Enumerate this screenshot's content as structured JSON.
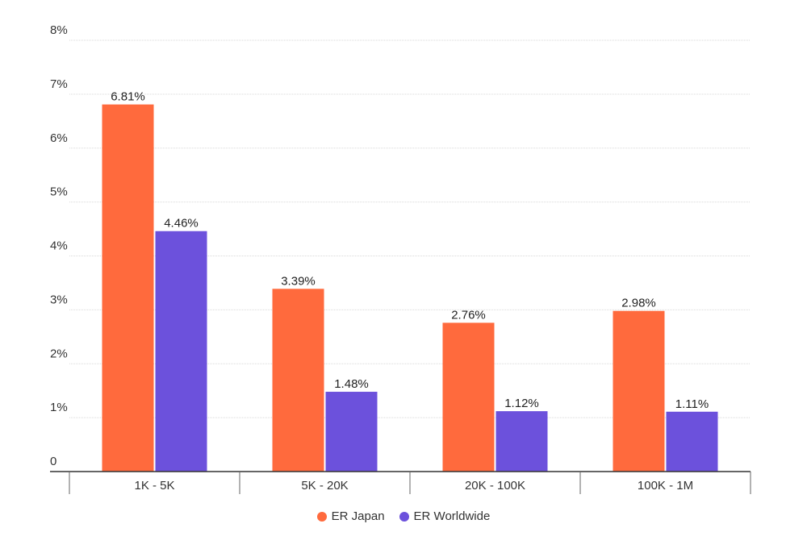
{
  "chart_data": {
    "type": "bar",
    "categories": [
      "1K - 5K",
      "5K - 20K",
      "20K - 100K",
      "100K - 1M"
    ],
    "series": [
      {
        "name": "ER Japan",
        "color": "#ff6a3d",
        "values": [
          6.81,
          3.39,
          2.76,
          2.98
        ],
        "labels": [
          "6.81%",
          "3.39%",
          "2.76%",
          "2.98%"
        ]
      },
      {
        "name": "ER Worldwide",
        "color": "#6c51dc",
        "values": [
          4.46,
          1.48,
          1.12,
          1.11
        ],
        "labels": [
          "4.46%",
          "1.48%",
          "1.12%",
          "1.11%"
        ]
      }
    ],
    "yticks": [
      {
        "value": 0,
        "label": "0"
      },
      {
        "value": 1,
        "label": "1%"
      },
      {
        "value": 2,
        "label": "2%"
      },
      {
        "value": 3,
        "label": "3%"
      },
      {
        "value": 4,
        "label": "4%"
      },
      {
        "value": 5,
        "label": "5%"
      },
      {
        "value": 6,
        "label": "6%"
      },
      {
        "value": 7,
        "label": "7%"
      },
      {
        "value": 8,
        "label": "8%"
      }
    ],
    "ylim": [
      0,
      8
    ],
    "grid": true,
    "legend_position": "bottom-center"
  }
}
